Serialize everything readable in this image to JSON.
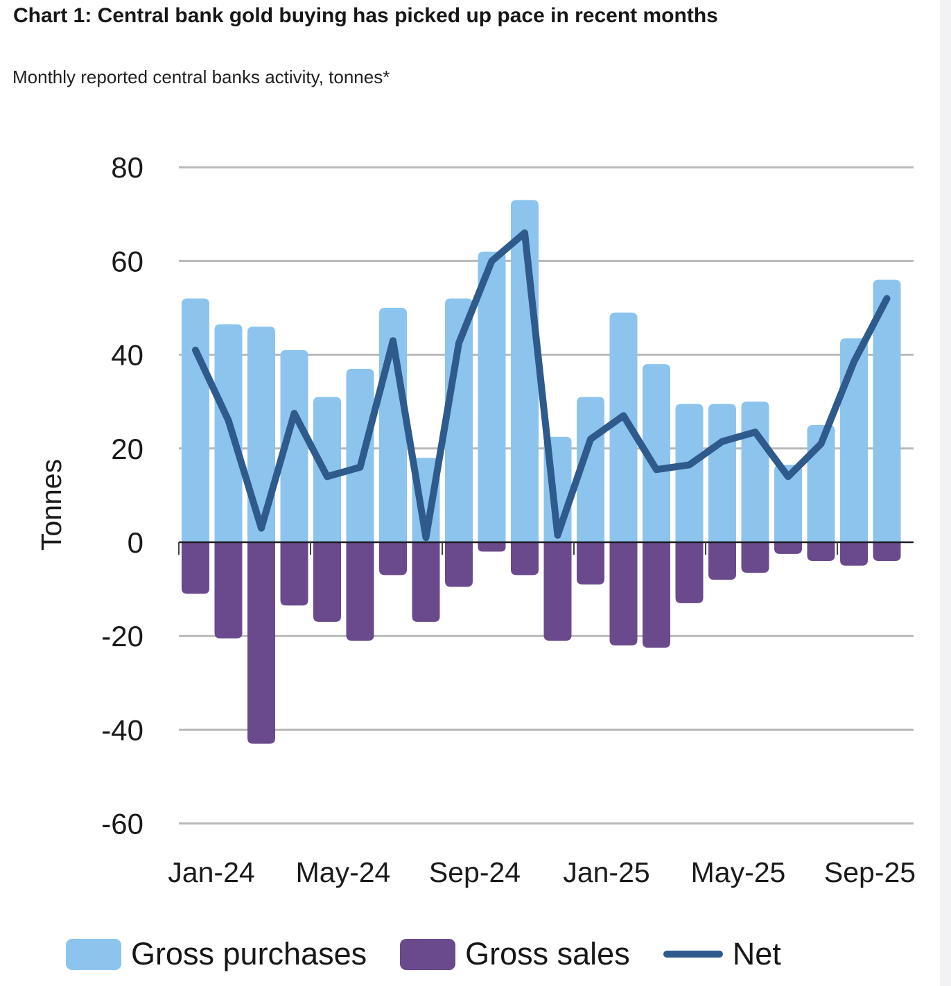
{
  "header": {
    "title": "Chart 1: Central bank gold buying has picked up pace in recent months",
    "subtitle": "Monthly reported central banks activity, tonnes*"
  },
  "chart_data": {
    "type": "bar",
    "title": "Chart 1: Central bank gold buying has picked up pace in recent months",
    "subtitle": "Monthly reported central banks activity, tonnes*",
    "xlabel": "",
    "ylabel": "Tonnes",
    "ylim": [
      -60,
      80
    ],
    "ytick_step": 20,
    "grid": true,
    "legend_position": "bottom",
    "categories": [
      "Jan-24",
      "Feb-24",
      "Mar-24",
      "Apr-24",
      "May-24",
      "Jun-24",
      "Jul-24",
      "Aug-24",
      "Sep-24",
      "Oct-24",
      "Nov-24",
      "Dec-24",
      "Jan-25",
      "Feb-25",
      "Mar-25",
      "Apr-25",
      "May-25",
      "Jun-25",
      "Jul-25",
      "Aug-25",
      "Sep-25",
      "Oct-25"
    ],
    "xtick_labels": [
      "Jan-24",
      "May-24",
      "Sep-24",
      "Jan-25",
      "May-25",
      "Sep-25"
    ],
    "xtick_month_indices": [
      0,
      4,
      8,
      12,
      16,
      20
    ],
    "series": [
      {
        "name": "Gross purchases",
        "type": "bar",
        "color": "#8CC4EE",
        "values": [
          52,
          46.5,
          46,
          41,
          31,
          37,
          50,
          18,
          52,
          62,
          73,
          22.5,
          31,
          49,
          38,
          29.5,
          29.5,
          30,
          16.5,
          25,
          43.5,
          56
        ]
      },
      {
        "name": "Gross sales",
        "type": "bar",
        "color": "#6A4A8C",
        "values": [
          -11,
          -20.5,
          -43,
          -13.5,
          -17,
          -21,
          -7,
          -17,
          -9.5,
          -2,
          -7,
          -21,
          -9,
          -22,
          -22.5,
          -13,
          -8,
          -6.5,
          -2.5,
          -4,
          -5,
          -4
        ]
      },
      {
        "name": "Net",
        "type": "line",
        "color": "#2F5A8C",
        "values": [
          41,
          26,
          3,
          27.5,
          14,
          16,
          43,
          1,
          42.5,
          60,
          66,
          1.5,
          22,
          27,
          15.5,
          16.5,
          21.5,
          23.5,
          14,
          21,
          38.5,
          52
        ]
      }
    ],
    "colors": {
      "grid": "#b9b9b9",
      "zero_axis": "#1b1b22",
      "tick": "#444444",
      "text": "#1a1a1a",
      "background": "#ffffff"
    }
  },
  "legend": {
    "items": [
      {
        "label": "Gross purchases",
        "swatch": "bar",
        "color": "#8CC4EE"
      },
      {
        "label": "Gross sales",
        "swatch": "bar",
        "color": "#6A4A8C"
      },
      {
        "label": "Net",
        "swatch": "line",
        "color": "#2F5A8C"
      }
    ]
  }
}
